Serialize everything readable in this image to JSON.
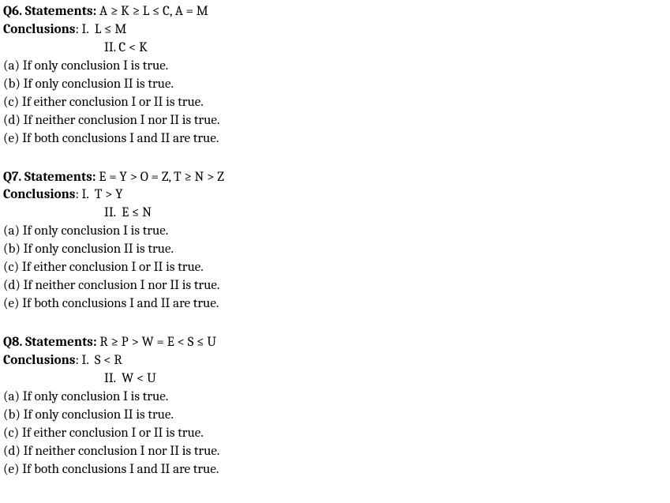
{
  "q6": {
    "header_label": "Q6. Statements: ",
    "statements": "A ≥ K ≥ L ≤ C, A = M",
    "conclusions_label": "Conclusions",
    "conclusion_1_prefix": ": I.  ",
    "conclusion_1": "L ≤ M",
    "conclusion_2_prefix": "II. ",
    "conclusion_2": "C < K",
    "options": {
      "a": "(a) If only conclusion I is true.",
      "b": "(b) If only conclusion II is true.",
      "c": "(c) If either conclusion I or II is true.",
      "d": "(d) If neither conclusion I nor II is true.",
      "e": "(e) If both conclusions I and II are true."
    }
  },
  "q7": {
    "header_label": "Q7. Statements: ",
    "statements": "E = Y > O = Z, T ≥ N > Z",
    "conclusions_label": "Conclusions",
    "conclusion_1_prefix": ": I.  ",
    "conclusion_1": "T > Y",
    "conclusion_2_prefix": "II.  ",
    "conclusion_2": "E ≤ N",
    "options": {
      "a": "(a) If only conclusion I is true.",
      "b": "(b) If only conclusion II is true.",
      "c": "(c) If either conclusion I or II is true.",
      "d": "(d) If neither conclusion I nor II is true.",
      "e": "(e) If both conclusions I and II are true."
    }
  },
  "q8": {
    "header_label": "Q8. Statements: ",
    "statements": "R ≥ P > W = E < S ≤ U",
    "conclusions_label": "Conclusions",
    "conclusion_1_prefix": ": I.  ",
    "conclusion_1": "S < R",
    "conclusion_2_prefix": "II.  ",
    "conclusion_2": "W < U",
    "options": {
      "a": "(a) If only conclusion I is true.",
      "b": "(b) If only conclusion II is true.",
      "c": "(c) If either conclusion I or II is true.",
      "d": "(d) If neither conclusion I nor II is true.",
      "e": "(e) If both conclusions I and II are true."
    }
  }
}
